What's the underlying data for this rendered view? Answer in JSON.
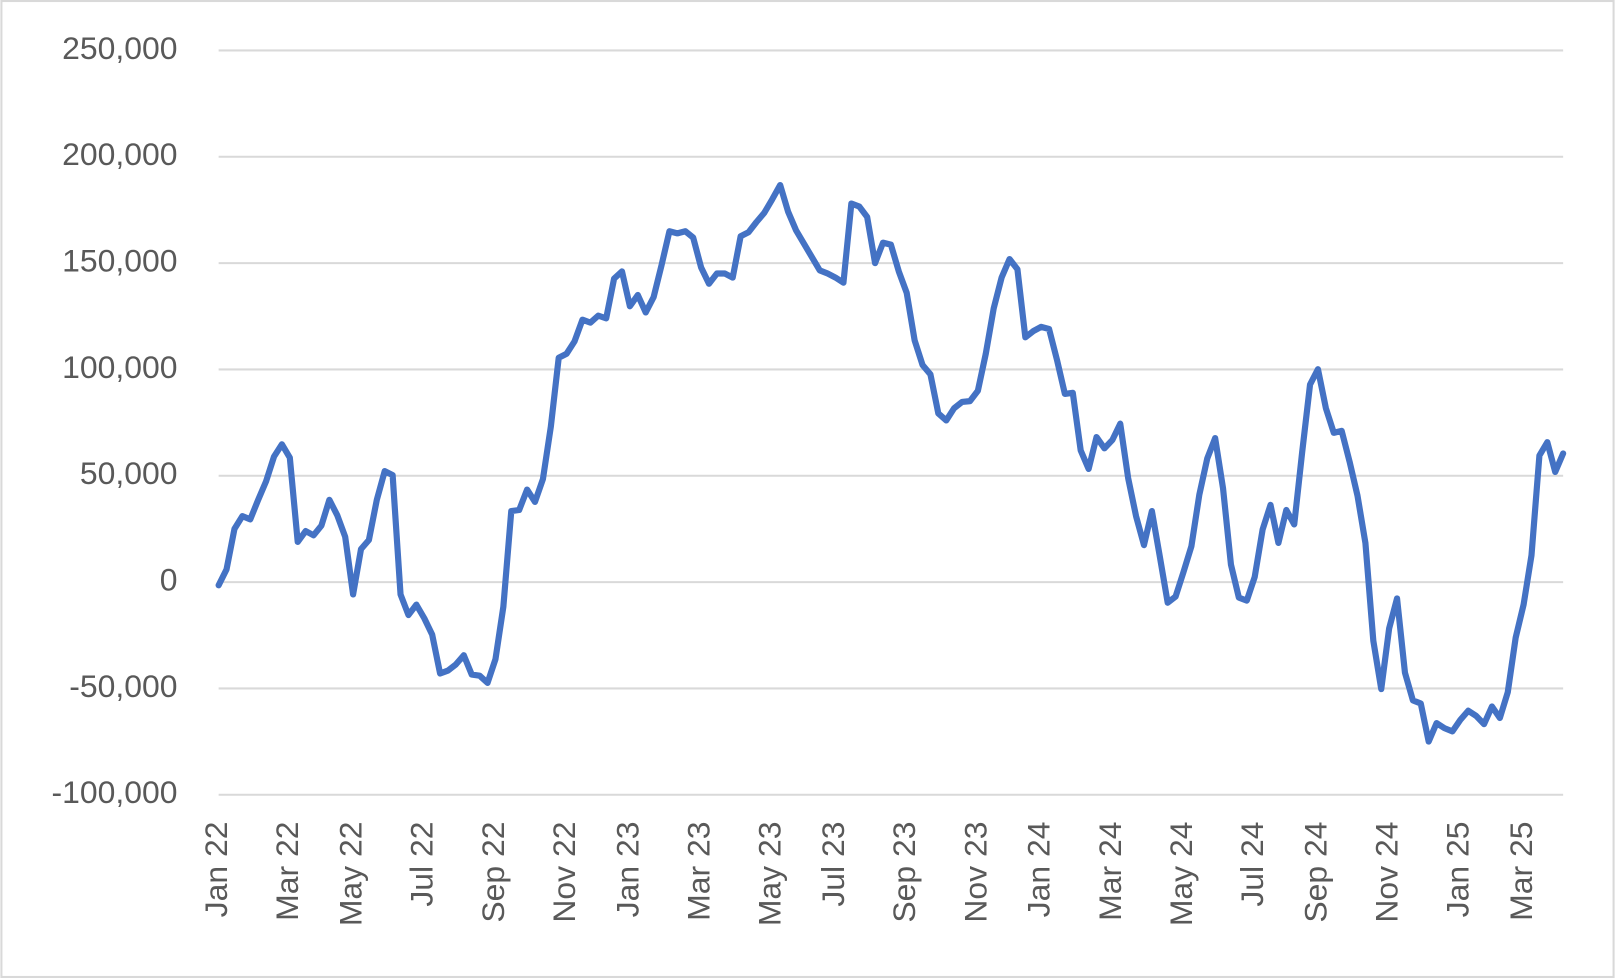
{
  "chart_data": {
    "type": "line",
    "color": "#4472c4",
    "grid": true,
    "ylim": [
      -100000,
      250000
    ],
    "yticks": [
      {
        "value": -100000,
        "label": "-100,000"
      },
      {
        "value": -50000,
        "label": "-50,000"
      },
      0,
      {
        "value": 50000,
        "label": "50,000"
      },
      {
        "value": 100000,
        "label": "100,000"
      },
      {
        "value": 150000,
        "label": "150,000"
      },
      {
        "value": 200000,
        "label": "200,000"
      },
      {
        "value": 250000,
        "label": "250,000"
      }
    ],
    "categories": [
      "Jan 22",
      null,
      null,
      null,
      null,
      null,
      null,
      null,
      null,
      "Mar 22",
      null,
      null,
      null,
      null,
      null,
      null,
      null,
      "May 22",
      null,
      null,
      null,
      null,
      null,
      null,
      null,
      null,
      "Jul 22",
      null,
      null,
      null,
      null,
      null,
      null,
      null,
      null,
      "Sep 22",
      null,
      null,
      null,
      null,
      null,
      null,
      null,
      null,
      "Nov 22",
      null,
      null,
      null,
      null,
      null,
      null,
      null,
      "Jan 23",
      null,
      null,
      null,
      null,
      null,
      null,
      null,
      null,
      "Mar 23",
      null,
      null,
      null,
      null,
      null,
      null,
      null,
      null,
      "May 23",
      null,
      null,
      null,
      null,
      null,
      null,
      null,
      "Jul 23",
      null,
      null,
      null,
      null,
      null,
      null,
      null,
      null,
      "Sep 23",
      null,
      null,
      null,
      null,
      null,
      null,
      null,
      null,
      "Nov 23",
      null,
      null,
      null,
      null,
      null,
      null,
      null,
      "Jan 24",
      null,
      null,
      null,
      null,
      null,
      null,
      null,
      null,
      "Mar 24",
      null,
      null,
      null,
      null,
      null,
      null,
      null,
      null,
      "May 24",
      null,
      null,
      null,
      null,
      null,
      null,
      null,
      null,
      "Jul 24",
      null,
      null,
      null,
      null,
      null,
      null,
      null,
      "Sep 24",
      null,
      null,
      null,
      null,
      null,
      null,
      null,
      null,
      "Nov 24",
      null,
      null,
      null,
      null,
      null,
      null,
      null,
      null,
      "Jan 25",
      null,
      null,
      null,
      null,
      null,
      null,
      null,
      "Mar 25",
      null,
      null,
      null,
      null,
      null
    ],
    "values": [
      -1500,
      6000,
      25000,
      31000,
      29500,
      38700,
      47400,
      59000,
      64800,
      58500,
      18900,
      24000,
      22000,
      26600,
      38700,
      31400,
      21300,
      -5800,
      15500,
      19800,
      38700,
      52200,
      50300,
      -5800,
      -15500,
      -10600,
      -17000,
      -24700,
      -43000,
      -41600,
      -38700,
      -34400,
      -43500,
      -44000,
      -47400,
      -36300,
      -11600,
      33400,
      33900,
      43500,
      37700,
      48400,
      73000,
      105500,
      107400,
      113200,
      123400,
      122000,
      125300,
      124000,
      142700,
      146100,
      129700,
      135000,
      126800,
      134000,
      149000,
      165000,
      164000,
      165000,
      162000,
      148000,
      140300,
      145100,
      145100,
      143200,
      162600,
      164500,
      169300,
      173700,
      180000,
      186700,
      174200,
      165500,
      159200,
      152900,
      146600,
      145100,
      143200,
      140800,
      178000,
      176600,
      171700,
      150000,
      159600,
      158700,
      146100,
      136000,
      113700,
      102100,
      97700,
      79300,
      76000,
      81800,
      84700,
      85100,
      90000,
      107400,
      128700,
      143200,
      151900,
      147100,
      115100,
      118000,
      120000,
      119000,
      104500,
      88500,
      89000,
      61900,
      53200,
      68200,
      62900,
      66800,
      74500,
      48900,
      31000,
      17400,
      33400,
      12100,
      -9700,
      -6800,
      4800,
      16900,
      41100,
      58100,
      67700,
      44000,
      8200,
      -7300,
      -8700,
      2400,
      24700,
      36300,
      18400,
      33900,
      27100,
      61000,
      92900,
      100100,
      81800,
      70200,
      71100,
      56600,
      40600,
      18400,
      -27600,
      -50300,
      -21800,
      -7700,
      -42600,
      -55600,
      -57100,
      -75000,
      -66300,
      -68700,
      -70200,
      -64800,
      -60500,
      -62900,
      -66800,
      -58500,
      -63900,
      -51800,
      -26100,
      -10600,
      12600,
      59500,
      65800,
      51800,
      60500
    ]
  }
}
